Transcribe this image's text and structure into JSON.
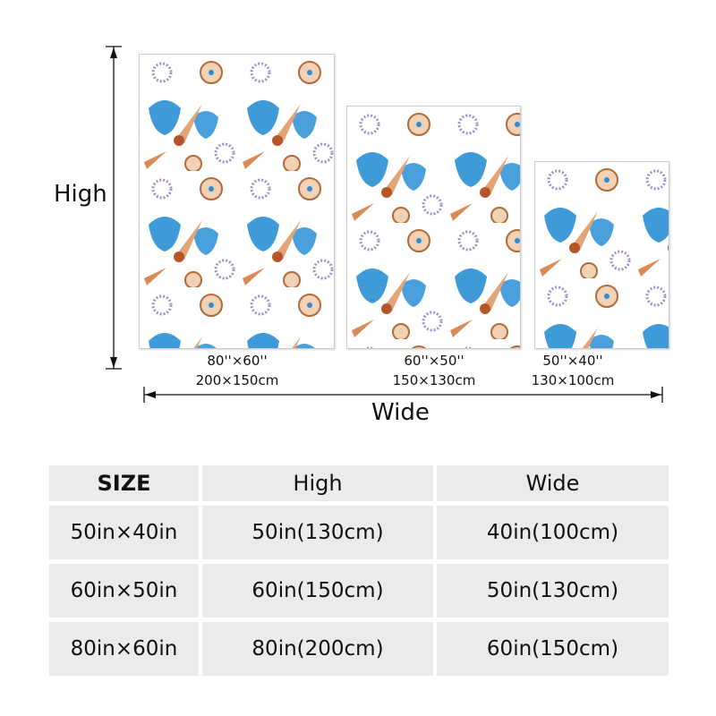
{
  "labels": {
    "high": "High",
    "wide": "Wide"
  },
  "blankets": [
    {
      "inches": "80''×60''",
      "cm": "200×150cm"
    },
    {
      "inches": "60''×50''",
      "cm": "150×130cm"
    },
    {
      "inches": "50''×40''",
      "cm": "130×100cm"
    }
  ],
  "table": {
    "headers": [
      "SIZE",
      "High",
      "Wide"
    ],
    "rows": [
      [
        "50in×40in",
        "50in(130cm)",
        "40in(100cm)"
      ],
      [
        "60in×50in",
        "60in(150cm)",
        "50in(130cm)"
      ],
      [
        "80in×60in",
        "80in(200cm)",
        "60in(150cm)"
      ]
    ]
  },
  "colors": {
    "cell": "#ebebeb",
    "blue_shell": "#2a8fd4",
    "orange_shell": "#d98a55",
    "purple_shell": "#a58cc8"
  }
}
